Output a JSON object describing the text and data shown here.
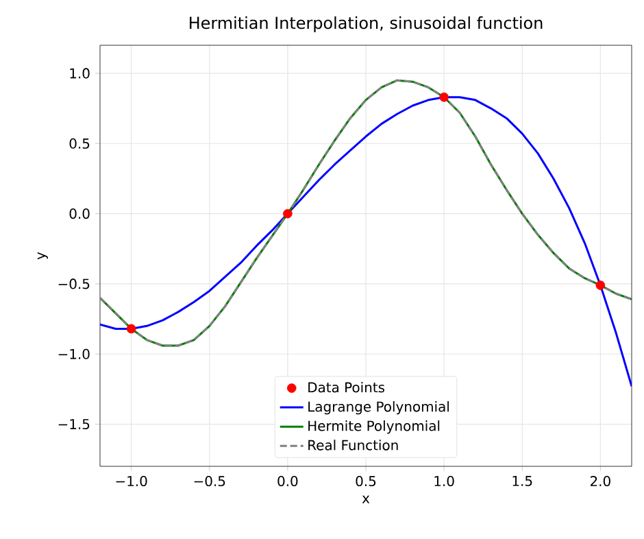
{
  "chart_data": {
    "type": "line",
    "title": "Hermitian Interpolation, sinusoidal function",
    "xlabel": "x",
    "ylabel": "y",
    "xlim": [
      -1.2,
      2.2
    ],
    "ylim": [
      -1.8,
      1.2
    ],
    "xticks": [
      {
        "value": -1.0,
        "label": "−1.0"
      },
      {
        "value": -0.5,
        "label": "−0.5"
      },
      {
        "value": 0.0,
        "label": "0.0"
      },
      {
        "value": 0.5,
        "label": "0.5"
      },
      {
        "value": 1.0,
        "label": "1.0"
      },
      {
        "value": 1.5,
        "label": "1.5"
      },
      {
        "value": 2.0,
        "label": "2.0"
      }
    ],
    "yticks": [
      {
        "value": -1.5,
        "label": "−1.5"
      },
      {
        "value": -1.0,
        "label": "−1.0"
      },
      {
        "value": -0.5,
        "label": "−0.5"
      },
      {
        "value": 0.0,
        "label": "0.0"
      },
      {
        "value": 0.5,
        "label": "0.5"
      },
      {
        "value": 1.0,
        "label": "1.0"
      }
    ],
    "grid": true,
    "legend": "bottom",
    "series": [
      {
        "name": "Data Points",
        "type": "scatter",
        "color": "#ff0000",
        "marker": "circle",
        "x": [
          -1.0,
          0.0,
          1.0,
          2.0
        ],
        "values": [
          -0.82,
          0.0,
          0.83,
          -0.51
        ]
      },
      {
        "name": "Lagrange Polynomial",
        "color": "#0000ff",
        "line_style": "solid",
        "marker": "none",
        "x": [
          -1.2,
          -1.1,
          -1.0,
          -0.9,
          -0.8,
          -0.7,
          -0.6,
          -0.5,
          -0.4,
          -0.3,
          -0.2,
          -0.1,
          0.0,
          0.1,
          0.2,
          0.3,
          0.4,
          0.5,
          0.6,
          0.7,
          0.8,
          0.9,
          1.0,
          1.1,
          1.2,
          1.3,
          1.4,
          1.5,
          1.6,
          1.7,
          1.8,
          1.9,
          2.0,
          2.1,
          2.2
        ],
        "values": [
          -0.79,
          -0.82,
          -0.82,
          -0.8,
          -0.76,
          -0.7,
          -0.63,
          -0.55,
          -0.45,
          -0.35,
          -0.23,
          -0.12,
          0.0,
          0.12,
          0.24,
          0.35,
          0.45,
          0.55,
          0.64,
          0.71,
          0.77,
          0.81,
          0.83,
          0.83,
          0.81,
          0.75,
          0.68,
          0.57,
          0.43,
          0.25,
          0.04,
          -0.21,
          -0.51,
          -0.85,
          -1.23
        ]
      },
      {
        "name": "Hermite Polynomial",
        "color": "#008000",
        "line_style": "solid",
        "marker": "none",
        "x": [
          -1.2,
          -1.1,
          -1.0,
          -0.9,
          -0.8,
          -0.7,
          -0.6,
          -0.5,
          -0.4,
          -0.3,
          -0.2,
          -0.1,
          0.0,
          0.1,
          0.2,
          0.3,
          0.4,
          0.5,
          0.6,
          0.7,
          0.8,
          0.9,
          1.0,
          1.1,
          1.2,
          1.3,
          1.4,
          1.5,
          1.6,
          1.7,
          1.8,
          1.9,
          2.0,
          2.1,
          2.2
        ],
        "values": [
          -0.6,
          -0.71,
          -0.82,
          -0.9,
          -0.94,
          -0.94,
          -0.9,
          -0.8,
          -0.66,
          -0.49,
          -0.32,
          -0.16,
          0.0,
          0.17,
          0.35,
          0.52,
          0.68,
          0.81,
          0.9,
          0.95,
          0.94,
          0.9,
          0.83,
          0.72,
          0.55,
          0.35,
          0.17,
          0.0,
          -0.15,
          -0.28,
          -0.39,
          -0.46,
          -0.51,
          -0.57,
          -0.61
        ]
      },
      {
        "name": "Real Function",
        "color": "#808080",
        "line_style": "dashed",
        "marker": "none",
        "x": [
          -1.2,
          -1.1,
          -1.0,
          -0.9,
          -0.8,
          -0.7,
          -0.6,
          -0.5,
          -0.4,
          -0.3,
          -0.2,
          -0.1,
          0.0,
          0.1,
          0.2,
          0.3,
          0.4,
          0.5,
          0.6,
          0.7,
          0.8,
          0.9,
          1.0,
          1.1,
          1.2,
          1.3,
          1.4,
          1.5,
          1.6,
          1.7,
          1.8,
          1.9,
          2.0,
          2.1,
          2.2
        ],
        "values": [
          -0.6,
          -0.71,
          -0.82,
          -0.9,
          -0.94,
          -0.94,
          -0.9,
          -0.8,
          -0.66,
          -0.49,
          -0.32,
          -0.16,
          0.0,
          0.17,
          0.35,
          0.52,
          0.68,
          0.81,
          0.9,
          0.95,
          0.94,
          0.9,
          0.83,
          0.72,
          0.55,
          0.35,
          0.17,
          0.0,
          -0.15,
          -0.28,
          -0.39,
          -0.46,
          -0.51,
          -0.57,
          -0.61
        ]
      }
    ]
  }
}
